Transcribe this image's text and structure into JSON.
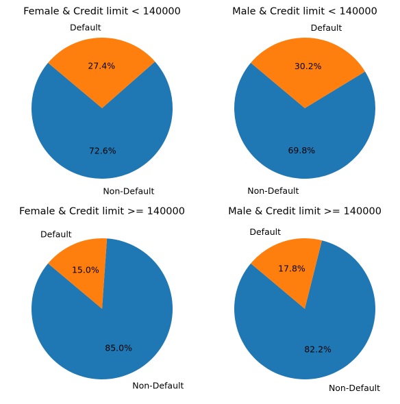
{
  "chart_data": [
    {
      "type": "pie",
      "title": "Female & Credit limit < 140000",
      "labels": [
        "Non-Default",
        "Default"
      ],
      "values": [
        72.6,
        27.4
      ],
      "percent_labels": [
        "72.6%",
        "27.4%"
      ],
      "colors": [
        "#1f77b4",
        "#ff7f0e"
      ]
    },
    {
      "type": "pie",
      "title": "Male & Credit limit < 140000",
      "labels": [
        "Non-Default",
        "Default"
      ],
      "values": [
        69.8,
        30.2
      ],
      "percent_labels": [
        "69.8%",
        "30.2%"
      ],
      "colors": [
        "#1f77b4",
        "#ff7f0e"
      ]
    },
    {
      "type": "pie",
      "title": "Female & Credit limit >= 140000",
      "labels": [
        "Non-Default",
        "Default"
      ],
      "values": [
        85.0,
        15.0
      ],
      "percent_labels": [
        "85.0%",
        "15.0%"
      ],
      "colors": [
        "#1f77b4",
        "#ff7f0e"
      ]
    },
    {
      "type": "pie",
      "title": "Male & Credit limit >= 140000",
      "labels": [
        "Non-Default",
        "Default"
      ],
      "values": [
        82.2,
        17.8
      ],
      "percent_labels": [
        "82.2%",
        "17.8%"
      ],
      "colors": [
        "#1f77b4",
        "#ff7f0e"
      ]
    }
  ]
}
